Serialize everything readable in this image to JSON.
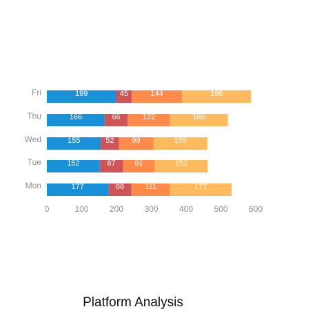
{
  "chart_data": {
    "type": "bar",
    "orientation": "horizontal",
    "stacked": true,
    "title": "Platform Analysis",
    "categories": [
      "Mon",
      "Tue",
      "Wed",
      "Thu",
      "Fri"
    ],
    "series": [
      {
        "values": [
          177,
          152,
          155,
          166,
          199
        ],
        "color": "#1a90d9"
      },
      {
        "values": [
          66,
          67,
          52,
          66,
          45
        ],
        "color": "#cf5458"
      },
      {
        "values": [
          111,
          91,
          99,
          122,
          144
        ],
        "color": "#ff8a4a"
      },
      {
        "values": [
          177,
          152,
          155,
          166,
          199
        ],
        "color": "#ffb95f"
      }
    ],
    "xlim": [
      0,
      600
    ],
    "xticks": [
      0,
      100,
      200,
      300,
      400,
      500,
      600
    ],
    "grid": false,
    "legend": "none"
  }
}
